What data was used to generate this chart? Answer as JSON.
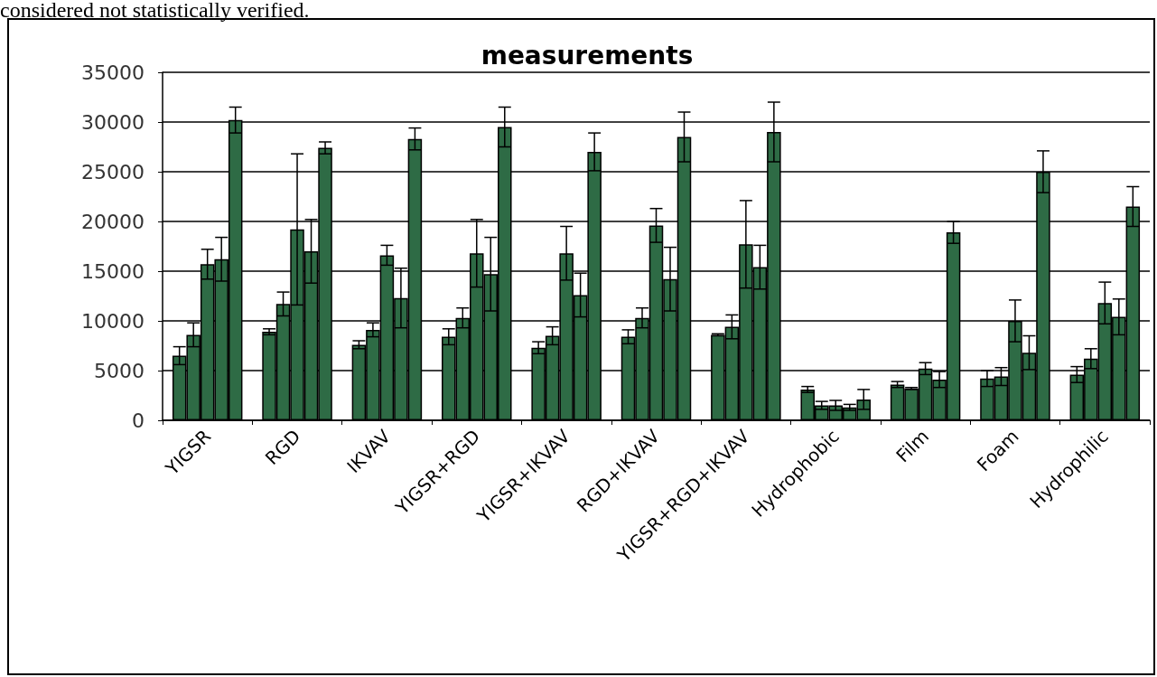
{
  "chart_data": {
    "type": "bar",
    "title": "measurements",
    "annotations": [
      "considered not statistically verified."
    ],
    "categories": [
      "YIGSR",
      "RGD",
      "IKVAV",
      "YIGSR+RGD",
      "YIGSR+IKVAV",
      "RGD+IKVAV",
      "YIGSR+RGD+IKVAV",
      "Hydrophobic",
      "Film",
      "Foam",
      "Hydrophilic"
    ],
    "series": [
      {
        "color": "#2e6b45",
        "values": [
          6500,
          8900,
          7600,
          8400,
          7300,
          8400,
          8600,
          3100,
          3600,
          4200,
          4600
        ],
        "errors": [
          900,
          300,
          400,
          800,
          600,
          700,
          100,
          300,
          300,
          800,
          800
        ]
      },
      {
        "color": "#2e6b45",
        "values": [
          8600,
          11700,
          9100,
          10300,
          8500,
          10300,
          9400,
          1500,
          3200,
          4400,
          6200
        ],
        "errors": [
          1200,
          1200,
          700,
          1000,
          900,
          1000,
          1200,
          400,
          100,
          900,
          1000
        ]
      },
      {
        "color": "#2e6b45",
        "values": [
          15700,
          19200,
          16600,
          16800,
          16800,
          19600,
          17700,
          1500,
          5200,
          10000,
          11800
        ],
        "errors": [
          1500,
          7600,
          1000,
          3400,
          2700,
          1700,
          4400,
          500,
          600,
          2100,
          2100
        ]
      },
      {
        "color": "#2e6b45",
        "values": [
          16200,
          17000,
          12300,
          14700,
          12600,
          14200,
          15400,
          1300,
          4100,
          6800,
          10400
        ],
        "errors": [
          2200,
          3200,
          3000,
          3700,
          2200,
          3200,
          2200,
          300,
          800,
          1700,
          1800
        ]
      },
      {
        "color": "#2e6b45",
        "values": [
          30200,
          27400,
          28300,
          29500,
          27000,
          28500,
          29000,
          2100,
          18900,
          25000,
          21500
        ],
        "errors": [
          1300,
          600,
          1100,
          2000,
          1900,
          2500,
          3000,
          1000,
          1100,
          2100,
          2000
        ]
      }
    ],
    "ylim": [
      0,
      35000
    ],
    "yticks": [
      0,
      5000,
      10000,
      15000,
      20000,
      25000,
      30000,
      35000
    ],
    "grid": "y"
  }
}
